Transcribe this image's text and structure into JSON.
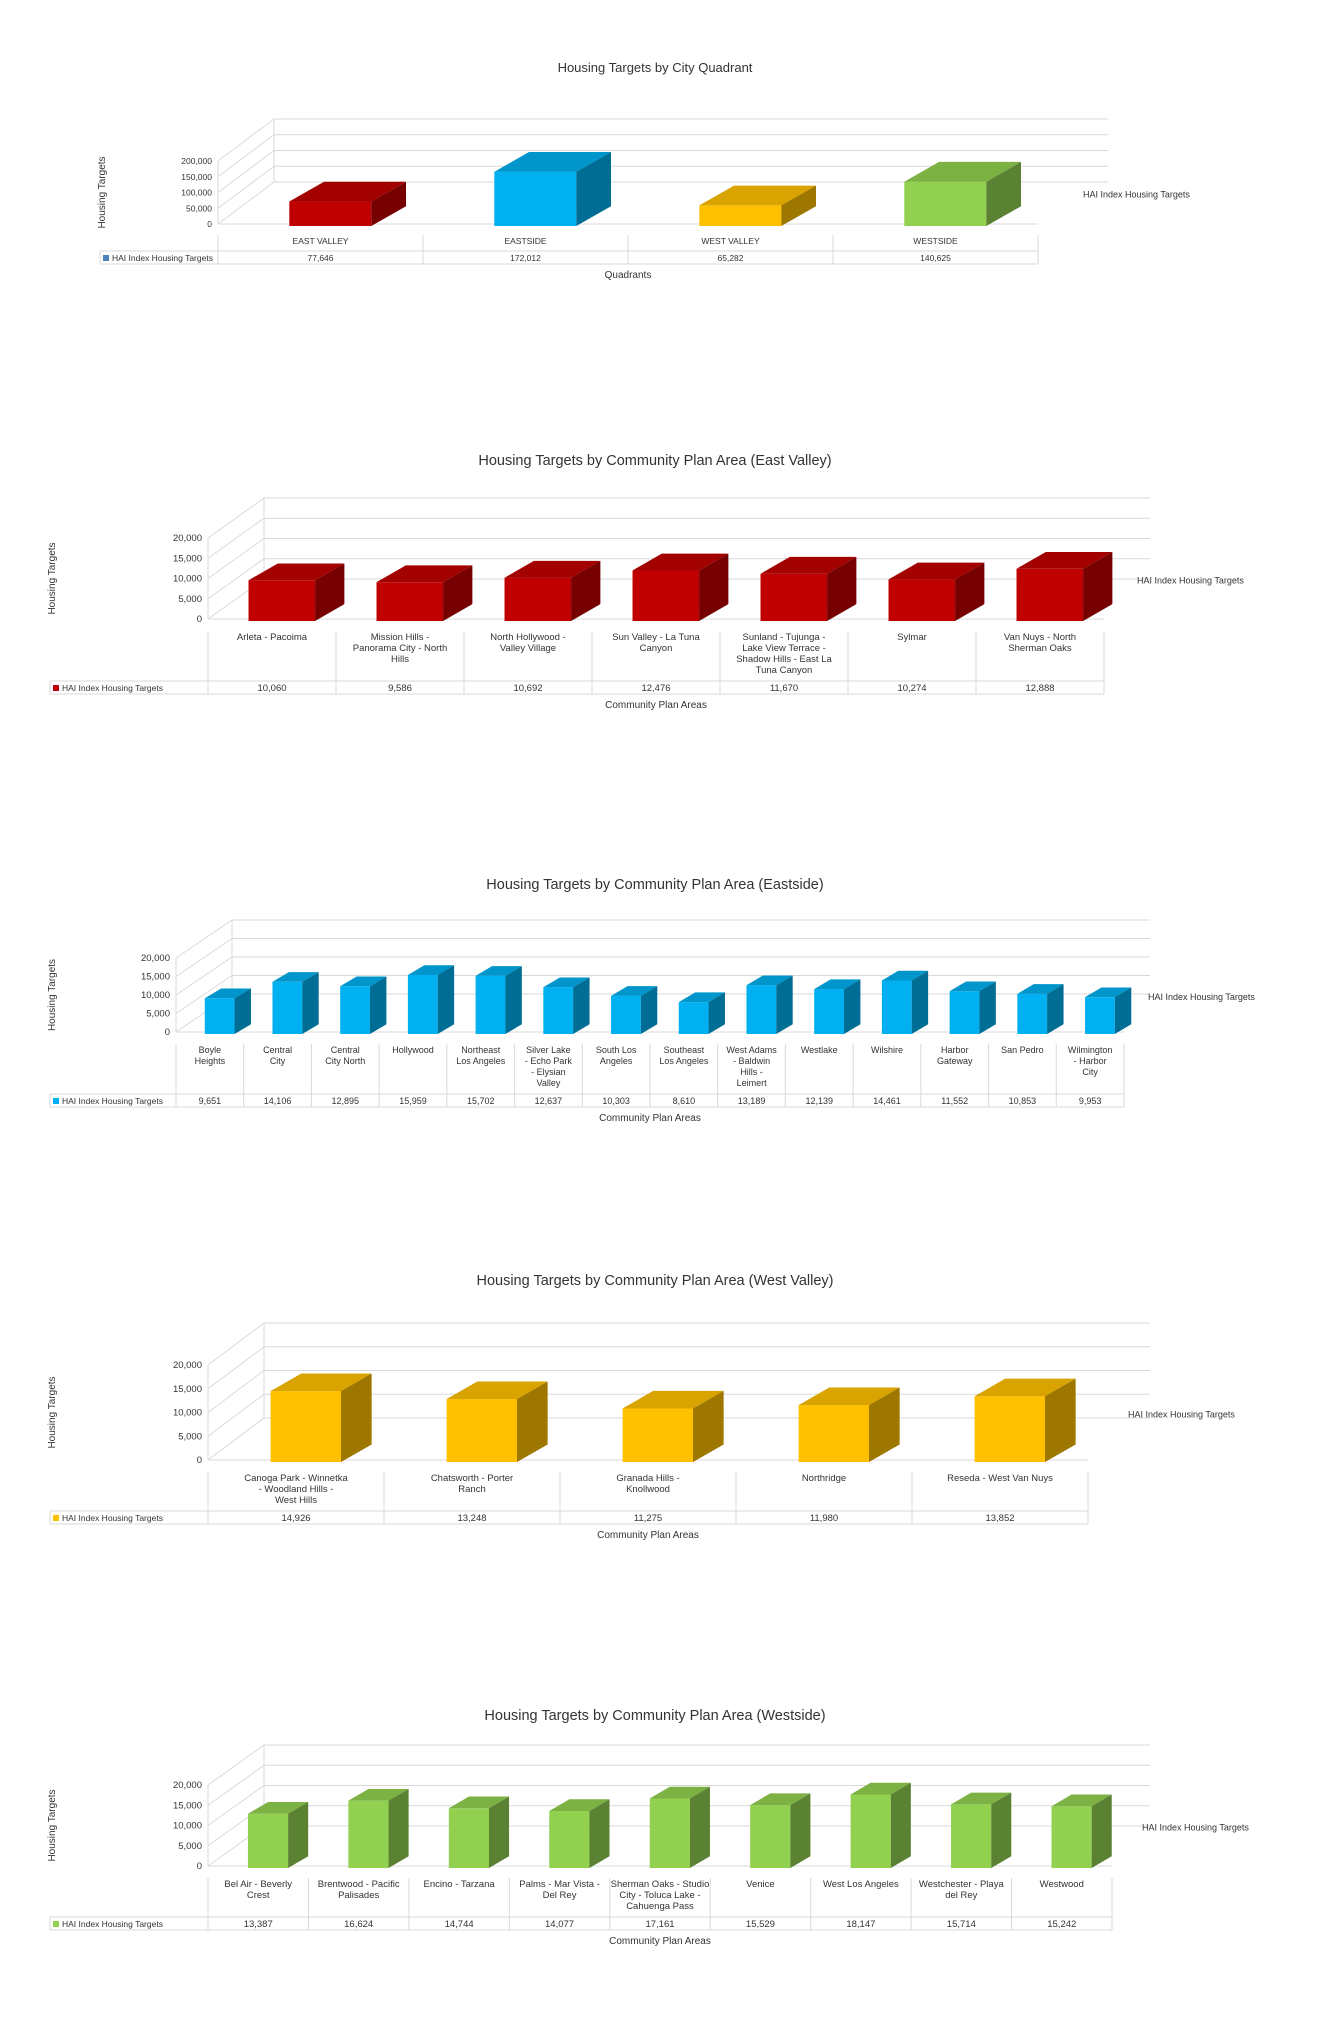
{
  "chart_data": [
    {
      "type": "bar",
      "title": "Housing Targets by City Quadrant",
      "ylabel": "Housing Targets",
      "xlabel": "Quadrants",
      "legend": "HAI Index Housing Targets",
      "ylim": [
        0,
        200000
      ],
      "yticks": [
        "0",
        "50,000",
        "100,000",
        "150,000",
        "200,000"
      ],
      "categories": [
        "EAST VALLEY",
        "EASTSIDE",
        "WEST VALLEY",
        "WESTSIDE"
      ],
      "value_labels": [
        "77,646",
        "172,012",
        "65,282",
        "140,625"
      ],
      "series": [
        {
          "name": "HAI Index Housing Targets",
          "values": [
            77646,
            172012,
            65282,
            140625
          ]
        }
      ],
      "bar_colors": [
        "#c00000",
        "#00b0f0",
        "#ffc000",
        "#92d050"
      ]
    },
    {
      "type": "bar",
      "title": "Housing Targets by Community Plan Area (East Valley)",
      "ylabel": "Housing Targets",
      "xlabel": "Community Plan Areas",
      "legend": "HAI Index Housing Targets",
      "ylim": [
        0,
        20000
      ],
      "yticks": [
        "0",
        "5,000",
        "10,000",
        "15,000",
        "20,000"
      ],
      "categories": [
        "Arleta - Pacoima",
        "Mission Hills - Panorama City - North Hills",
        "North Hollywood - Valley Village",
        "Sun Valley - La Tuna Canyon",
        "Sunland - Tujunga - Lake View Terrace - Shadow Hills - East La Tuna Canyon",
        "Sylmar",
        "Van Nuys - North Sherman Oaks"
      ],
      "value_labels": [
        "10,060",
        "9,586",
        "10,692",
        "12,476",
        "11,670",
        "10,274",
        "12,888"
      ],
      "series": [
        {
          "name": "HAI Index Housing Targets",
          "values": [
            10060,
            9586,
            10692,
            12476,
            11670,
            10274,
            12888
          ]
        }
      ],
      "color": "#c00000"
    },
    {
      "type": "bar",
      "title": "Housing Targets by Community Plan Area (Eastside)",
      "ylabel": "Housing Targets",
      "xlabel": "Community Plan Areas",
      "legend": "HAI Index Housing Targets",
      "ylim": [
        0,
        20000
      ],
      "yticks": [
        "0",
        "5,000",
        "10,000",
        "15,000",
        "20,000"
      ],
      "categories": [
        "Boyle Heights",
        "Central City",
        "Central City North",
        "Hollywood",
        "Northeast Los Angeles",
        "Silver Lake - Echo Park - Elysian Valley",
        "South Los Angeles",
        "Southeast Los Angeles",
        "West Adams - Baldwin Hills - Leimert",
        "Westlake",
        "Wilshire",
        "Harbor Gateway",
        "San Pedro",
        "Wilmington - Harbor City"
      ],
      "value_labels": [
        "9,651",
        "14,106",
        "12,895",
        "15,959",
        "15,702",
        "12,637",
        "10,303",
        "8,610",
        "13,189",
        "12,139",
        "14,461",
        "11,552",
        "10,853",
        "9,953"
      ],
      "series": [
        {
          "name": "HAI Index Housing Targets",
          "values": [
            9651,
            14106,
            12895,
            15959,
            15702,
            12637,
            10303,
            8610,
            13189,
            12139,
            14461,
            11552,
            10853,
            9953
          ]
        }
      ],
      "color": "#00b0f0"
    },
    {
      "type": "bar",
      "title": "Housing Targets by Community Plan Area (West Valley)",
      "ylabel": "Housing Targets",
      "xlabel": "Community Plan Areas",
      "legend": "HAI Index Housing Targets",
      "ylim": [
        0,
        20000
      ],
      "yticks": [
        "0",
        "5,000",
        "10,000",
        "15,000",
        "20,000"
      ],
      "categories": [
        "Canoga Park - Winnetka - Woodland Hills - West Hills",
        "Chatsworth - Porter Ranch",
        "Granada Hills - Knollwood",
        "Northridge",
        "Reseda - West Van Nuys"
      ],
      "value_labels": [
        "14,926",
        "13,248",
        "11,275",
        "11,980",
        "13,852"
      ],
      "series": [
        {
          "name": "HAI Index Housing Targets",
          "values": [
            14926,
            13248,
            11275,
            11980,
            13852
          ]
        }
      ],
      "color": "#ffc000"
    },
    {
      "type": "bar",
      "title": "Housing Targets by Community Plan Area (Westside)",
      "ylabel": "Housing Targets",
      "xlabel": "Community Plan Areas",
      "legend": "HAI Index Housing Targets",
      "ylim": [
        0,
        20000
      ],
      "yticks": [
        "0",
        "5,000",
        "10,000",
        "15,000",
        "20,000"
      ],
      "categories": [
        "Bel Air - Beverly Crest",
        "Brentwood - Pacific Palisades",
        "Encino - Tarzana",
        "Palms - Mar Vista - Del Rey",
        "Sherman Oaks - Studio City - Toluca Lake - Cahuenga Pass",
        "Venice",
        "West Los Angeles",
        "Westchester - Playa del Rey",
        "Westwood"
      ],
      "value_labels": [
        "13,387",
        "16,624",
        "14,744",
        "14,077",
        "17,161",
        "15,529",
        "18,147",
        "15,714",
        "15,242"
      ],
      "series": [
        {
          "name": "HAI Index Housing Targets",
          "values": [
            13387,
            16624,
            14744,
            14077,
            17161,
            15529,
            18147,
            15714,
            15242
          ]
        }
      ],
      "color": "#92d050"
    }
  ]
}
